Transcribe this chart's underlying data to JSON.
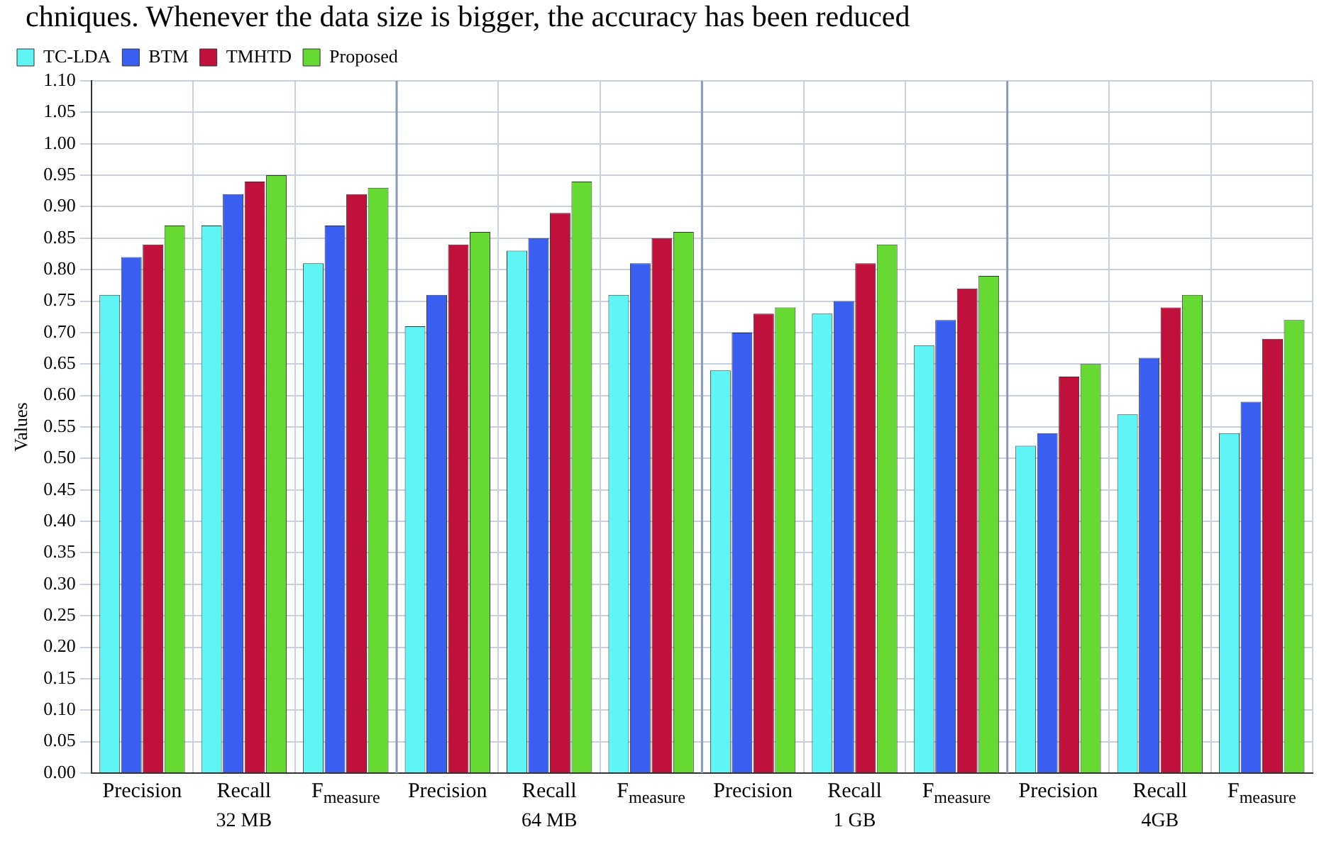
{
  "chart_data": {
    "type": "bar",
    "ylabel": "Values",
    "categories": [
      "Precision",
      "Recall",
      "F$_{measure}$",
      "Precision",
      "Recall",
      "F$_{measure}$",
      "Precision",
      "Recall",
      "F$_{measure}$",
      "Precision",
      "Recall",
      "F$_{measure}$"
    ],
    "series": [
      {
        "name": "TC-LDA",
        "color": "#5ff5f5",
        "values": [
          0.76,
          0.87,
          0.81,
          0.71,
          0.83,
          0.76,
          0.64,
          0.73,
          0.68,
          0.52,
          0.57,
          0.54
        ]
      },
      {
        "name": "BTM",
        "color": "#3a5ef0",
        "values": [
          0.82,
          0.92,
          0.87,
          0.76,
          0.85,
          0.81,
          0.7,
          0.75,
          0.72,
          0.54,
          0.66,
          0.59
        ]
      },
      {
        "name": "TMHTD",
        "color": "#c0103c",
        "values": [
          0.84,
          0.94,
          0.92,
          0.84,
          0.89,
          0.85,
          0.73,
          0.81,
          0.77,
          0.63,
          0.74,
          0.69
        ]
      },
      {
        "name": "Proposed",
        "color": "#66d933",
        "values": [
          0.87,
          0.95,
          0.93,
          0.86,
          0.94,
          0.86,
          0.74,
          0.84,
          0.79,
          0.65,
          0.76,
          0.72
        ]
      }
    ],
    "ylim": [
      0,
      1.1
    ],
    "yticks": [
      {
        "value": 0,
        "label": "0.00"
      },
      {
        "value": 0.05,
        "label": "0.05"
      },
      {
        "value": 0.1,
        "label": "0.10"
      },
      {
        "value": 0.15,
        "label": "0.15"
      },
      {
        "value": 0.2,
        "label": "0.20"
      },
      {
        "value": 0.25,
        "label": "0.25"
      },
      {
        "value": 0.3,
        "label": "0.30"
      },
      {
        "value": 0.35,
        "label": "0.35"
      },
      {
        "value": 0.4,
        "label": "0.40"
      },
      {
        "value": 0.45,
        "label": "0.45"
      },
      {
        "value": 0.5,
        "label": "0.50"
      },
      {
        "value": 0.55,
        "label": "0.55"
      },
      {
        "value": 0.6,
        "label": "0.60"
      },
      {
        "value": 0.65,
        "label": "0.65"
      },
      {
        "value": 0.7,
        "label": "0.70"
      },
      {
        "value": 0.75,
        "label": "0.75"
      },
      {
        "value": 0.8,
        "label": "0.80"
      },
      {
        "value": 0.85,
        "label": "0.85"
      },
      {
        "value": 0.9,
        "label": "0.90"
      },
      {
        "value": 0.95,
        "label": "0.95"
      },
      {
        "value": 1,
        "label": "1.00"
      },
      {
        "value": 1.05,
        "label": "1.05"
      },
      {
        "value": 1.1,
        "label": "1.10"
      }
    ],
    "grid": true,
    "legend": "top left",
    "annotations": [
      "chniques. Whenever the data size is bigger, the accuracy has been reduced",
      "32 MB",
      "64 MB",
      "1 GB",
      "4GB"
    ]
  }
}
